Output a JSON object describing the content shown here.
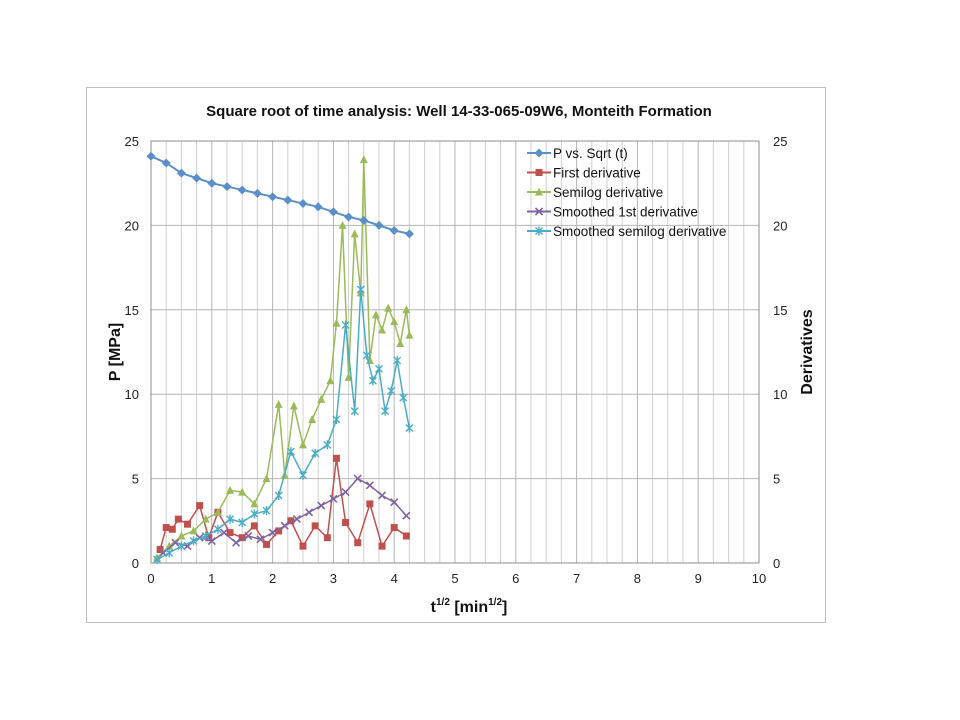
{
  "chart_data": {
    "type": "scatter",
    "title": "Square root of time analysis: Well 14-33-065-09W6, Monteith Formation",
    "xlabel": "t",
    "xlabel_sup": "1/2",
    "xlabel_tail": " [min",
    "xlabel_tail_sup": "1/2",
    "xlabel_close": "]",
    "ylabel": "P [MPa]",
    "y2label": "Derivatives",
    "xlim": [
      0,
      10
    ],
    "ylim": [
      0,
      25
    ],
    "y2lim": [
      0,
      25
    ],
    "x_ticks": [
      "0",
      "1",
      "2",
      "3",
      "4",
      "5",
      "6",
      "7",
      "8",
      "9",
      "10"
    ],
    "y_ticks": [
      "0",
      "5",
      "10",
      "15",
      "20",
      "25"
    ],
    "y2_ticks": [
      "0",
      "5",
      "10",
      "15",
      "20",
      "25"
    ],
    "grid": true,
    "legend_position": "top-right",
    "colors": {
      "pressure": "#5b8fc9",
      "first": "#c0504d",
      "semilog": "#9bbb59",
      "smoothed_first": "#8064a2",
      "smoothed_semilog": "#4bacc6",
      "grid": "#d0d0d0"
    },
    "series": [
      {
        "name": "P vs. Sqrt (t)",
        "marker": "diamond",
        "x": [
          0,
          0.25,
          0.5,
          0.75,
          1.0,
          1.25,
          1.5,
          1.75,
          2.0,
          2.25,
          2.5,
          2.75,
          3.0,
          3.25,
          3.5,
          3.75,
          4.0,
          4.25
        ],
        "y": [
          24.1,
          23.7,
          23.1,
          22.8,
          22.5,
          22.3,
          22.1,
          21.9,
          21.7,
          21.5,
          21.3,
          21.1,
          20.8,
          20.5,
          20.3,
          20.0,
          19.7,
          19.5
        ]
      },
      {
        "name": "First derivative",
        "marker": "square",
        "x": [
          0.15,
          0.25,
          0.35,
          0.45,
          0.6,
          0.8,
          0.95,
          1.1,
          1.3,
          1.5,
          1.7,
          1.9,
          2.1,
          2.3,
          2.5,
          2.7,
          2.9,
          3.05,
          3.2,
          3.4,
          3.6,
          3.8,
          4.0,
          4.2
        ],
        "y": [
          0.8,
          2.1,
          2.0,
          2.6,
          2.3,
          3.4,
          1.5,
          3.0,
          1.8,
          1.5,
          2.2,
          1.1,
          1.9,
          2.5,
          1.0,
          2.2,
          1.5,
          6.2,
          2.4,
          1.2,
          3.5,
          1.0,
          2.1,
          1.6
        ]
      },
      {
        "name": "Semilog derivative",
        "marker": "triangle",
        "x": [
          0.1,
          0.3,
          0.5,
          0.7,
          0.9,
          1.1,
          1.3,
          1.5,
          1.7,
          1.9,
          2.1,
          2.2,
          2.35,
          2.5,
          2.65,
          2.8,
          2.95,
          3.05,
          3.15,
          3.25,
          3.35,
          3.45,
          3.5,
          3.6,
          3.7,
          3.8,
          3.9,
          4.0,
          4.1,
          4.2,
          4.25
        ],
        "y": [
          0.3,
          1.0,
          1.6,
          1.9,
          2.6,
          3.0,
          4.3,
          4.2,
          3.5,
          5.0,
          9.4,
          5.2,
          9.3,
          7.0,
          8.5,
          9.7,
          10.8,
          14.2,
          20.0,
          11.0,
          19.5,
          16.0,
          23.9,
          12.0,
          14.7,
          13.8,
          15.1,
          14.3,
          13.0,
          15.0,
          13.5
        ]
      },
      {
        "name": "Smoothed 1st derivative",
        "marker": "x",
        "x": [
          0.2,
          0.4,
          0.6,
          0.8,
          1.0,
          1.2,
          1.4,
          1.6,
          1.8,
          2.0,
          2.2,
          2.4,
          2.6,
          2.8,
          3.0,
          3.2,
          3.4,
          3.6,
          3.8,
          4.0,
          4.2
        ],
        "y": [
          0.6,
          1.2,
          1.0,
          1.5,
          1.3,
          1.8,
          1.2,
          1.6,
          1.4,
          1.8,
          2.2,
          2.6,
          3.0,
          3.4,
          3.8,
          4.2,
          5.0,
          4.6,
          4.0,
          3.6,
          2.8
        ]
      },
      {
        "name": "Smoothed semilog derivative",
        "marker": "star",
        "x": [
          0.1,
          0.3,
          0.5,
          0.7,
          0.9,
          1.1,
          1.3,
          1.5,
          1.7,
          1.9,
          2.1,
          2.3,
          2.5,
          2.7,
          2.9,
          3.05,
          3.2,
          3.35,
          3.45,
          3.55,
          3.65,
          3.75,
          3.85,
          3.95,
          4.05,
          4.15,
          4.25
        ],
        "y": [
          0.2,
          0.6,
          1.0,
          1.3,
          1.6,
          2.0,
          2.6,
          2.4,
          2.9,
          3.1,
          4.0,
          6.6,
          5.2,
          6.5,
          7.0,
          8.5,
          14.1,
          9.0,
          16.2,
          12.3,
          10.8,
          11.5,
          9.0,
          10.2,
          12.0,
          9.8,
          8.0
        ]
      }
    ]
  }
}
